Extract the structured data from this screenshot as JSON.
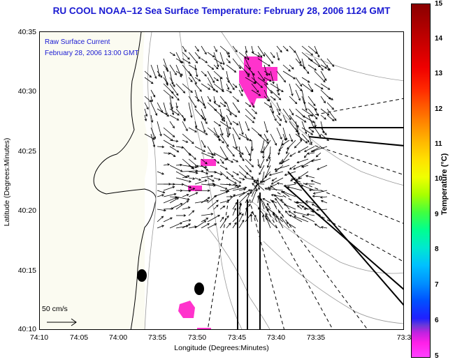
{
  "title": "RU COOL  NOAA–12  Sea Surface Temperature:  February 28, 2006 1124 GMT",
  "legend": {
    "line1": "Raw Surface Current",
    "line2": "February 28, 2006 13:00 GMT"
  },
  "y_axis": {
    "title": "Latitude (Degrees:Minutes)",
    "ticks": [
      "40:35",
      "40:30",
      "40:25",
      "40:20",
      "40:15",
      "40:10"
    ]
  },
  "x_axis": {
    "title": "Longitude (Degrees:Minutes)",
    "ticks": [
      "74:10",
      "74:05",
      "74:00",
      "73:55",
      "73:50",
      "73:45",
      "73:40",
      "73:35",
      "73:3"
    ]
  },
  "colorbar": {
    "title": "Temperature (°C)",
    "ticks": [
      "15",
      "14",
      "13",
      "12",
      "11",
      "10",
      "9",
      "8",
      "7",
      "6",
      "5"
    ]
  },
  "scale": {
    "label": "50 cm/s"
  },
  "colors": {
    "title": "#1a1ad2",
    "land": "#fbfbf1",
    "sst_patch": "#ff33cc"
  }
}
